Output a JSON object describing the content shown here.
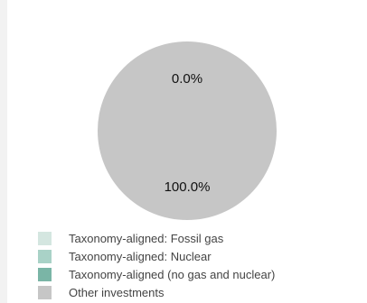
{
  "chart_data": {
    "type": "pie",
    "title": "",
    "slices": [
      {
        "name": "Taxonomy-aligned: Fossil gas",
        "value": 0.0,
        "color": "#d4e6e0"
      },
      {
        "name": "Taxonomy-aligned: Nuclear",
        "value": 0.0,
        "color": "#a9d2c7"
      },
      {
        "name": "Taxonomy-aligned (no gas and nuclear)",
        "value": 0.0,
        "color": "#7ab5a6"
      },
      {
        "name": "Other investments",
        "value": 100.0,
        "color": "#c6c6c6"
      }
    ],
    "data_labels": [
      {
        "text": "0.0%",
        "slice": "Taxonomy-aligned (no gas and nuclear)"
      },
      {
        "text": "100.0%",
        "slice": "Other investments"
      }
    ],
    "legend": {
      "placement": "bottom-left",
      "entries": [
        "Taxonomy-aligned: Fossil gas",
        "Taxonomy-aligned: Nuclear",
        "Taxonomy-aligned (no gas and nuclear)",
        "Other investments"
      ]
    }
  }
}
